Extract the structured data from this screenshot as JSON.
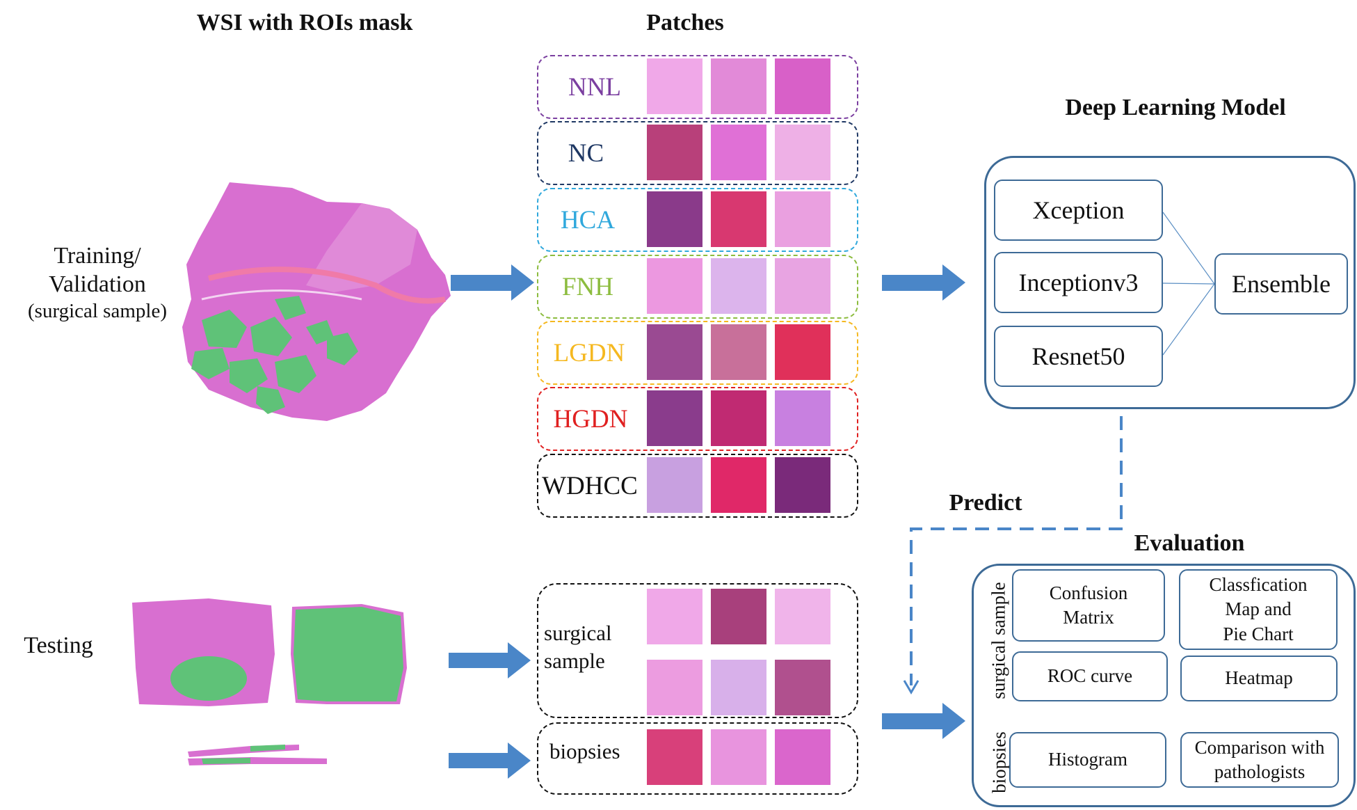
{
  "headers": {
    "wsi": "WSI with ROIs mask",
    "patches": "Patches",
    "model": "Deep Learning Model",
    "evaluation": "Evaluation",
    "predict": "Predict"
  },
  "left": {
    "training_line1": "Training/",
    "training_line2": "Validation",
    "training_line3": "(surgical sample)",
    "testing": "Testing"
  },
  "classes": [
    {
      "name": "NNL",
      "color": "#7b3fa0"
    },
    {
      "name": "NC",
      "color": "#1f3864"
    },
    {
      "name": "HCA",
      "color": "#2fa8dc"
    },
    {
      "name": "FNH",
      "color": "#8cbc3e"
    },
    {
      "name": "LGDN",
      "color": "#f5b820"
    },
    {
      "name": "HGDN",
      "color": "#e02020"
    },
    {
      "name": "WDHCC",
      "color": "#111111"
    }
  ],
  "test_groups": {
    "surgical_line1": "surgical",
    "surgical_line2": "sample",
    "biopsies": "biopsies"
  },
  "models": {
    "xception": "Xception",
    "inception": "Inceptionv3",
    "resnet": "Resnet50",
    "ensemble": "Ensemble"
  },
  "evaluation": {
    "side_surgical": "surgical sample",
    "side_biopsies": "biopsies",
    "confusion_line1": "Confusion",
    "confusion_line2": "Matrix",
    "classmap_line1": "Classfication",
    "classmap_line2": "Map and",
    "classmap_line3": "Pie Chart",
    "roc": "ROC curve",
    "heatmap": "Heatmap",
    "histogram": "Histogram",
    "compare_line1": "Comparison with",
    "compare_line2": "pathologists"
  },
  "colors": {
    "arrow": "#4a86c8",
    "frame": "#3d6a96",
    "tissue": "#d86fd0",
    "roi": "#5fc278"
  }
}
